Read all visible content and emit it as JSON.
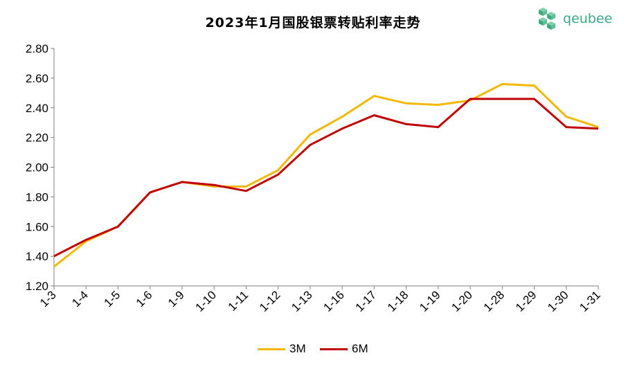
{
  "colors": {
    "3M": "#f5b800",
    "6M": "#c00000",
    "axis": "#7f7f7f",
    "logo": "#3aa882"
  },
  "logo": {
    "name": "qeubee",
    "icon": "cube-cluster-icon"
  },
  "chart_data": {
    "type": "line",
    "title": "2023年1月国股银票转贴利率走势",
    "categories": [
      "1-3",
      "1-4",
      "1-5",
      "1-6",
      "1-9",
      "1-10",
      "1-11",
      "1-12",
      "1-13",
      "1-16",
      "1-17",
      "1-18",
      "1-19",
      "1-20",
      "1-28",
      "1-29",
      "1-30",
      "1-31"
    ],
    "series": [
      {
        "name": "3M",
        "values": [
          1.33,
          1.5,
          1.6,
          1.83,
          1.9,
          1.87,
          1.87,
          1.98,
          2.22,
          2.34,
          2.48,
          2.43,
          2.42,
          2.45,
          2.56,
          2.55,
          2.34,
          2.27
        ]
      },
      {
        "name": "6M",
        "values": [
          1.4,
          1.51,
          1.6,
          1.83,
          1.9,
          1.88,
          1.84,
          1.95,
          2.15,
          2.26,
          2.35,
          2.29,
          2.27,
          2.46,
          2.46,
          2.46,
          2.27,
          2.26
        ]
      }
    ],
    "ylim": [
      1.2,
      2.8
    ],
    "yticks": [
      "1.20",
      "1.40",
      "1.60",
      "1.80",
      "2.00",
      "2.20",
      "2.40",
      "2.60",
      "2.80"
    ],
    "grid": false,
    "legend": "bottom-center",
    "xlabel": "",
    "ylabel": ""
  }
}
